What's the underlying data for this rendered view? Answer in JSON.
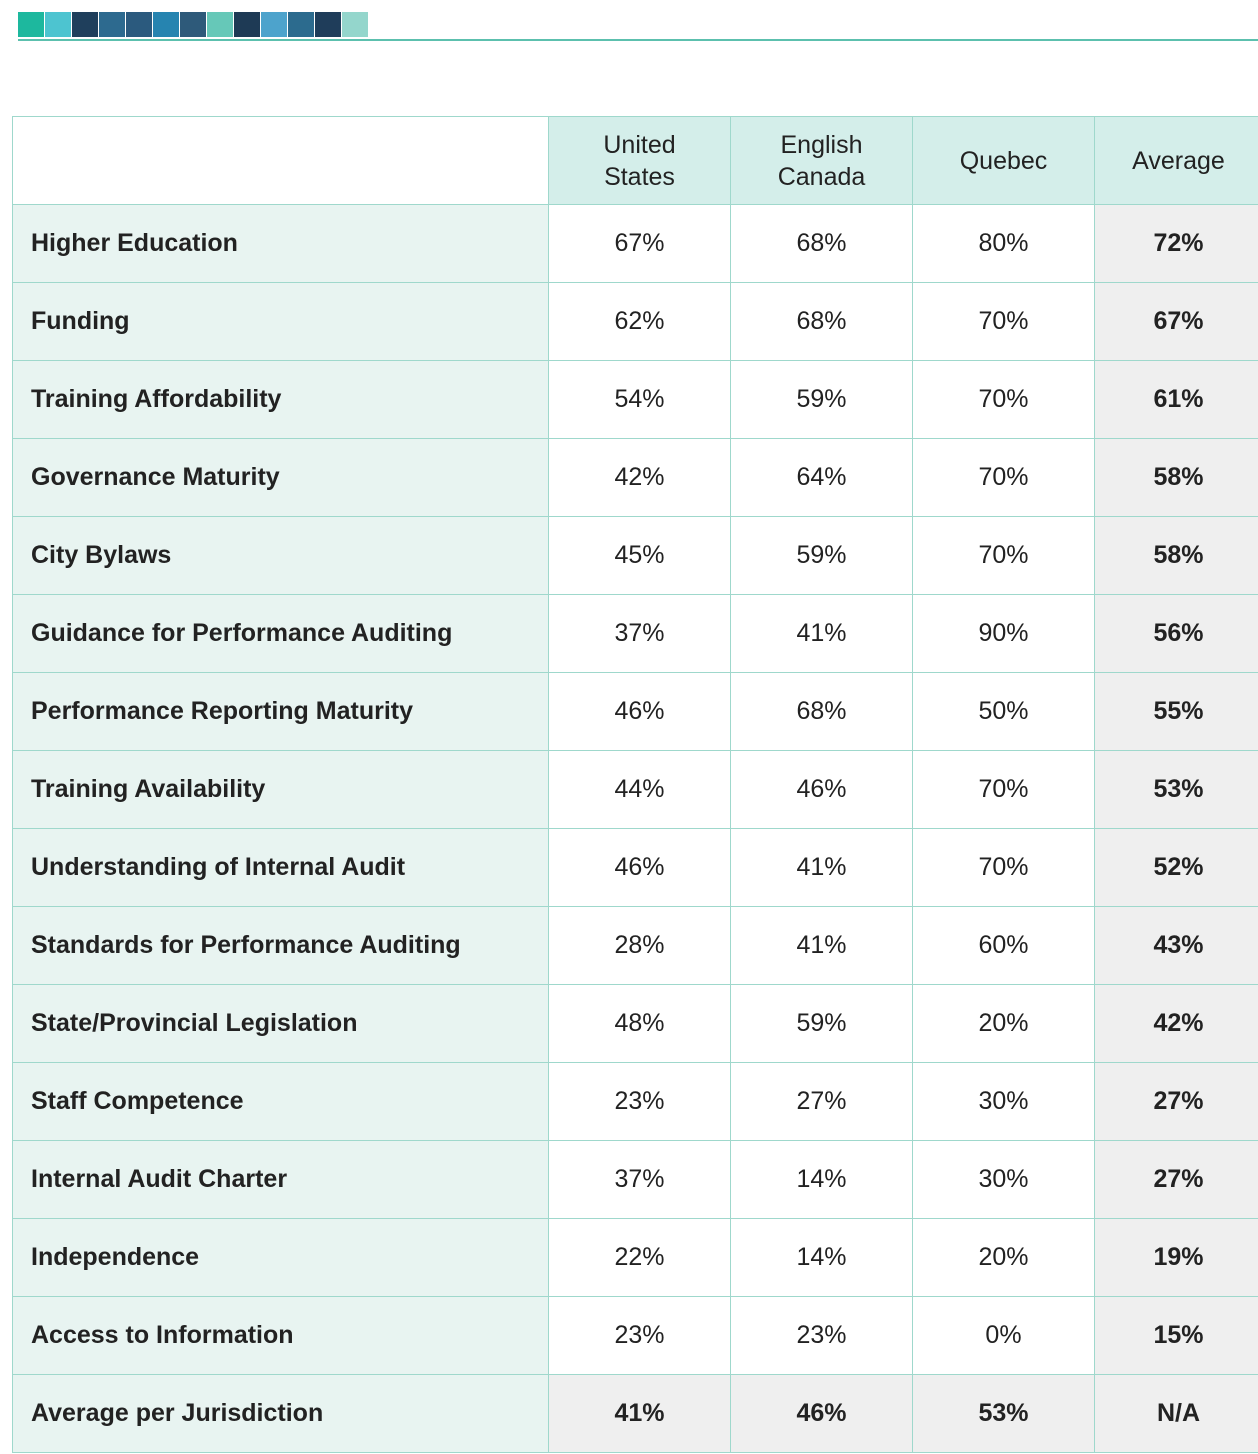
{
  "table": {
    "header": [
      "United States",
      "English Canada",
      "Quebec",
      "Average"
    ],
    "rows": [
      [
        "Higher Education",
        "67%",
        "68%",
        "80%",
        "72%"
      ],
      [
        "Funding",
        "62%",
        "68%",
        "70%",
        "67%"
      ],
      [
        "Training Affordability",
        "54%",
        "59%",
        "70%",
        "61%"
      ],
      [
        "Governance Maturity",
        "42%",
        "64%",
        "70%",
        "58%"
      ],
      [
        "City Bylaws",
        "45%",
        "59%",
        "70%",
        "58%"
      ],
      [
        "Guidance for Performance Auditing",
        "37%",
        "41%",
        "90%",
        "56%"
      ],
      [
        "Performance Reporting Maturity",
        "46%",
        "68%",
        "50%",
        "55%"
      ],
      [
        "Training Availability",
        "44%",
        "46%",
        "70%",
        "53%"
      ],
      [
        "Understanding of Internal Audit",
        "46%",
        "41%",
        "70%",
        "52%"
      ],
      [
        "Standards for Performance Auditing",
        "28%",
        "41%",
        "60%",
        "43%"
      ],
      [
        "State/Provincial Legislation",
        "48%",
        "59%",
        "20%",
        "42%"
      ],
      [
        "Staff Competence",
        "23%",
        "27%",
        "30%",
        "27%"
      ],
      [
        "Internal Audit Charter",
        "37%",
        "14%",
        "30%",
        "27%"
      ],
      [
        "Independence",
        "22%",
        "14%",
        "20%",
        "19%"
      ],
      [
        "Access to Information",
        "23%",
        "23%",
        "0%",
        "15%"
      ],
      [
        "Average per Jurisdiction",
        "41%",
        "46%",
        "53%",
        "N/A"
      ]
    ]
  }
}
